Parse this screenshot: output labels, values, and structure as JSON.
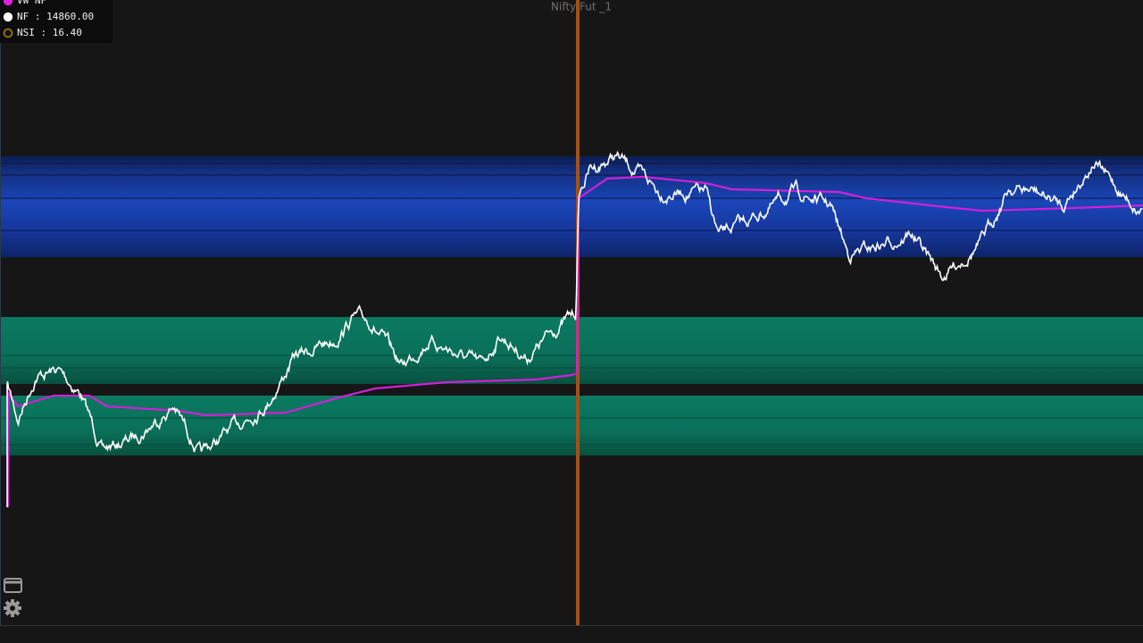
{
  "header": {
    "title": "Nifty Fut _1"
  },
  "legend": [
    {
      "label": "VW NF",
      "color": "#e020e0"
    },
    {
      "label": "NF : 14860.00",
      "color": "#ffffff"
    },
    {
      "label": "NSI : 16.40",
      "color": "#c8a000"
    }
  ]
}
